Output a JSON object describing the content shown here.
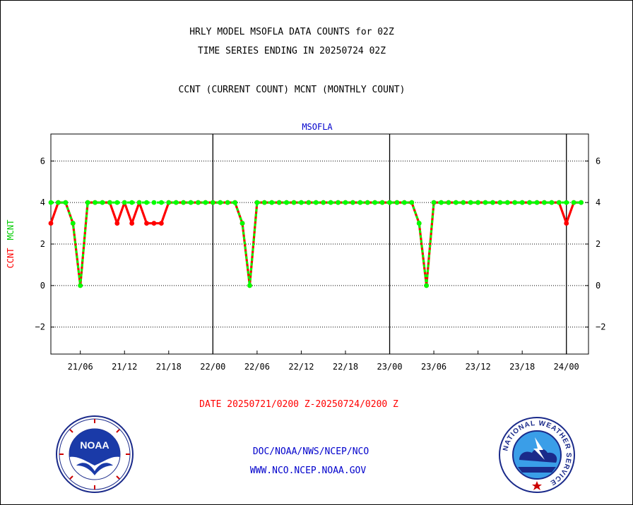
{
  "header": {
    "title_line1": "HRLY MODEL MSOFLA DATA COUNTS for 02Z",
    "title_line2": "TIME SERIES ENDING IN 20250724 02Z",
    "subtitle": "CCNT (CURRENT COUNT) MCNT (MONTHLY COUNT)"
  },
  "footer": {
    "date_range": "DATE 20250721/0200 Z-20250724/0200 Z",
    "org_path": "DOC/NOAA/NWS/NCEP/NCO",
    "website": "WWW.NCO.NCEP.NOAA.GOV"
  },
  "logos": {
    "noaa_text": "NOAA",
    "nws_ring_text": "NATIONAL WEATHER SERVICE"
  },
  "colors": {
    "ccnt": "#ff0000",
    "mcnt": "#00ff00",
    "label_blue": "#0000cc",
    "date_red": "#ff0000"
  },
  "chart_data": {
    "type": "line",
    "panel_title": "MSOFLA",
    "ylabel_ccnt": "CCNT",
    "ylabel_mcnt": "MCNT",
    "ylim": [
      -3.3,
      7.3
    ],
    "xlim_hours": [
      0,
      73
    ],
    "y_ticks": [
      6,
      4,
      2,
      0,
      -2
    ],
    "y_tick_labels": [
      "6",
      "4",
      "2",
      "0",
      "−2"
    ],
    "x_ticks_hours": [
      4,
      10,
      16,
      22,
      28,
      34,
      40,
      46,
      52,
      58,
      64,
      70
    ],
    "x_tick_labels": [
      "21/06",
      "21/12",
      "21/18",
      "22/00",
      "22/06",
      "22/12",
      "22/18",
      "23/00",
      "23/06",
      "23/12",
      "23/18",
      "24/00"
    ],
    "day_boundaries_hours": [
      22,
      46,
      70
    ],
    "grid": true,
    "series": [
      {
        "name": "CCNT",
        "color": "#ff0000",
        "values": [
          3,
          4,
          4,
          3,
          0,
          4,
          4,
          4,
          4,
          3,
          4,
          3,
          4,
          3,
          3,
          3,
          4,
          4,
          4,
          4,
          4,
          4,
          4,
          4,
          4,
          4,
          3,
          0,
          4,
          4,
          4,
          4,
          4,
          4,
          4,
          4,
          4,
          4,
          4,
          4,
          4,
          4,
          4,
          4,
          4,
          4,
          4,
          4,
          4,
          4,
          3,
          0,
          4,
          4,
          4,
          4,
          4,
          4,
          4,
          4,
          4,
          4,
          4,
          4,
          4,
          4,
          4,
          4,
          4,
          4,
          3,
          4,
          4
        ]
      },
      {
        "name": "MCNT",
        "color": "#00ff00",
        "values": [
          4,
          4,
          4,
          3,
          0,
          4,
          4,
          4,
          4,
          4,
          4,
          4,
          4,
          4,
          4,
          4,
          4,
          4,
          4,
          4,
          4,
          4,
          4,
          4,
          4,
          4,
          3,
          0,
          4,
          4,
          4,
          4,
          4,
          4,
          4,
          4,
          4,
          4,
          4,
          4,
          4,
          4,
          4,
          4,
          4,
          4,
          4,
          4,
          4,
          4,
          3,
          0,
          4,
          4,
          4,
          4,
          4,
          4,
          4,
          4,
          4,
          4,
          4,
          4,
          4,
          4,
          4,
          4,
          4,
          4,
          4,
          4,
          4
        ]
      }
    ]
  }
}
